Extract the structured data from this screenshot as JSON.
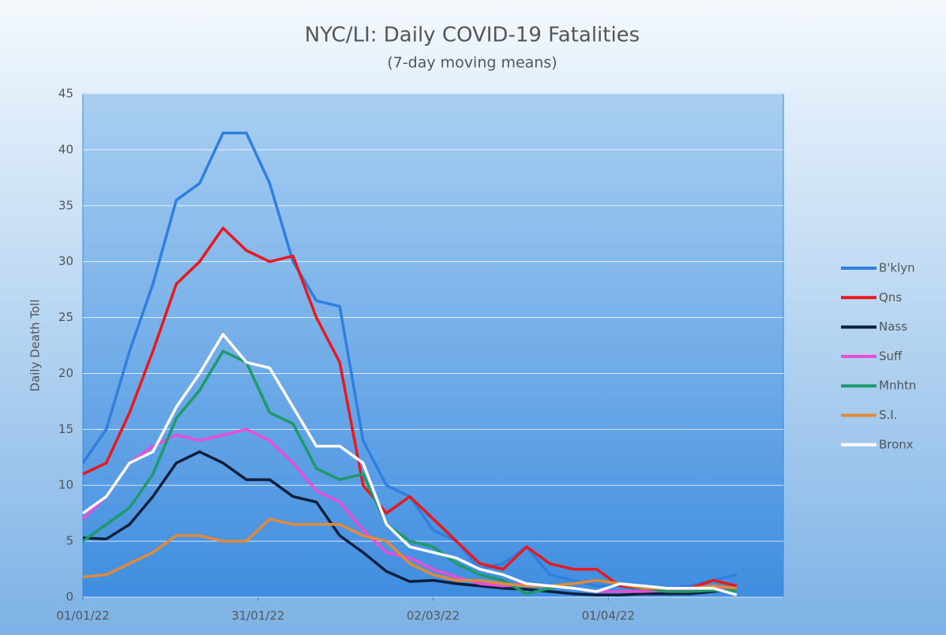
{
  "chart_data": {
    "type": "line",
    "title": "NYC/LI: Daily COVID-19 Fatalities",
    "subtitle": "(7-day moving means)",
    "y_label": "Daily Death Toll",
    "x": [
      "01/01/22",
      "05/01/22",
      "09/01/22",
      "13/01/22",
      "17/01/22",
      "21/01/22",
      "25/01/22",
      "29/01/22",
      "02/02/22",
      "06/02/22",
      "10/02/22",
      "14/02/22",
      "18/02/22",
      "22/02/22",
      "26/02/22",
      "02/03/22",
      "06/03/22",
      "10/03/22",
      "14/03/22",
      "18/03/22",
      "22/03/22",
      "26/03/22",
      "30/03/22",
      "03/04/22",
      "07/04/22",
      "11/04/22",
      "15/04/22",
      "19/04/22",
      "23/04/22"
    ],
    "xlim": [
      "01/01/22",
      "01/05/22"
    ],
    "xticks": [
      "01/01/22",
      "31/01/22",
      "02/03/22",
      "01/04/22"
    ],
    "ylim": [
      0,
      45
    ],
    "yticks": [
      0,
      5,
      10,
      15,
      20,
      25,
      30,
      35,
      40,
      45
    ],
    "grid": true,
    "legend": "right",
    "series": [
      {
        "name": "B'klyn",
        "color": "#2f7fe0",
        "values": [
          12,
          15,
          22,
          28,
          35.5,
          37,
          41.5,
          41.5,
          37,
          30,
          26.5,
          26,
          14,
          10,
          9,
          6,
          5,
          2.5,
          3,
          4.5,
          2,
          1.5,
          1,
          1,
          0.7,
          0.8,
          1,
          1.5,
          2
        ]
      },
      {
        "name": "Qns",
        "color": "#e8191c",
        "values": [
          11,
          12,
          16.5,
          22,
          28,
          30,
          33,
          31,
          30,
          30.5,
          25,
          21,
          10,
          7.5,
          9,
          7,
          5,
          3,
          2.5,
          4.5,
          3,
          2.5,
          2.5,
          1,
          0.8,
          0.6,
          0.8,
          1.5,
          1
        ]
      },
      {
        "name": "Nass",
        "color": "#0e1f3c",
        "values": [
          5.3,
          5.2,
          6.5,
          9,
          12,
          13,
          12,
          10.5,
          10.5,
          9,
          8.5,
          5.5,
          4,
          2.3,
          1.4,
          1.5,
          1.2,
          1,
          0.8,
          0.7,
          0.5,
          0.3,
          0.2,
          0.2,
          0.3,
          0.3,
          0.3,
          0.5,
          0.8
        ]
      },
      {
        "name": "Suff",
        "color": "#e84fd6",
        "values": [
          7,
          9,
          12,
          13.5,
          14.5,
          14,
          14.5,
          15,
          14,
          12,
          9.5,
          8.5,
          6,
          4,
          3.5,
          2.5,
          1.8,
          1.2,
          1,
          1.2,
          1,
          0.8,
          0.5,
          0.5,
          0.5,
          0.6,
          0.6,
          0.8,
          0.8
        ]
      },
      {
        "name": "Mnhtn",
        "color": "#1e9a6a",
        "values": [
          5,
          6.5,
          8,
          11,
          16,
          18.5,
          22,
          21,
          16.5,
          15.5,
          11.5,
          10.5,
          11,
          6.5,
          5,
          4.5,
          3,
          2,
          1.5,
          0.3,
          0.8,
          1.2,
          1.5,
          1.2,
          0.8,
          0.5,
          0.5,
          0.6,
          0.6
        ]
      },
      {
        "name": "S.I.",
        "color": "#e08a3a",
        "values": [
          1.8,
          2,
          3,
          4,
          5.5,
          5.5,
          5,
          5,
          7,
          6.5,
          6.5,
          6.5,
          5.5,
          5,
          3,
          2,
          1.5,
          1.5,
          1.2,
          1,
          1,
          1.2,
          1.5,
          1.2,
          0.8,
          0.8,
          0.8,
          1,
          0.8
        ]
      },
      {
        "name": "Bronx",
        "color": "#ffffff",
        "values": [
          7.5,
          9,
          12,
          13,
          17,
          20,
          23.5,
          21,
          20.5,
          17,
          13.5,
          13.5,
          12,
          6.5,
          4.5,
          4,
          3.5,
          2.5,
          2,
          1.2,
          1,
          0.8,
          0.5,
          1.2,
          1,
          0.8,
          0.8,
          0.8,
          0.2
        ]
      }
    ]
  }
}
